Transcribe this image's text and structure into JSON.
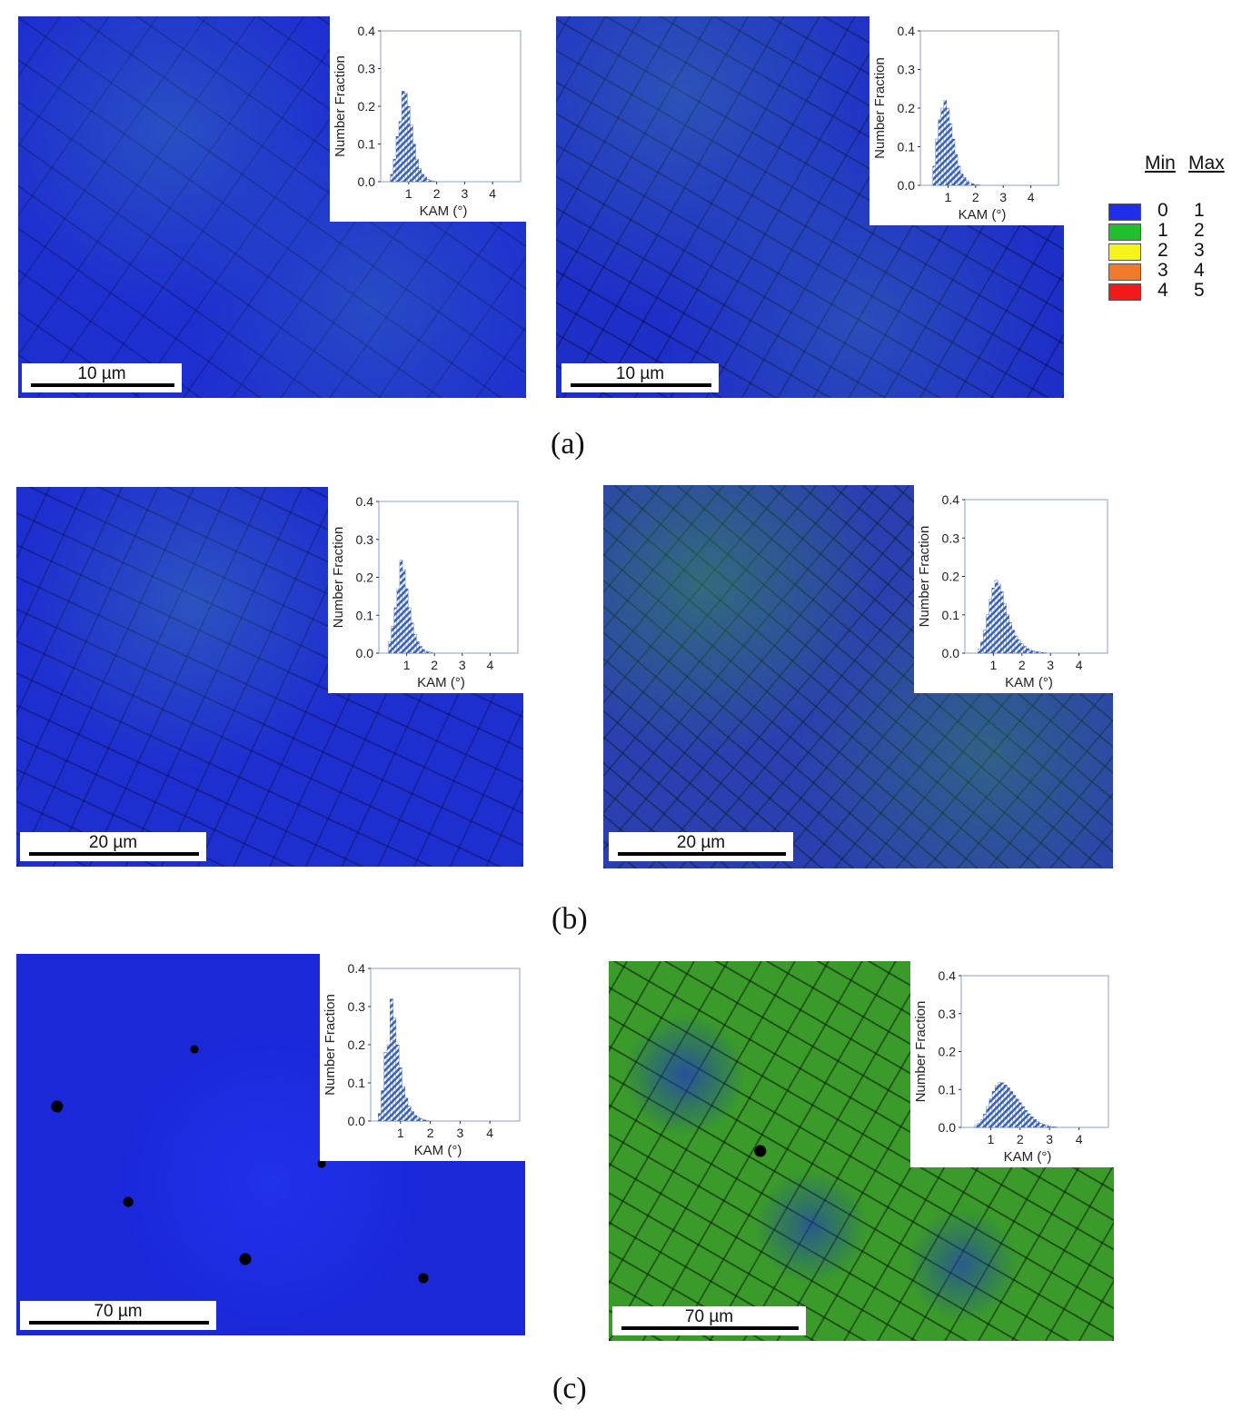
{
  "legend": {
    "min_header": "Min",
    "max_header": "Max",
    "rows": [
      {
        "min": "0",
        "max": "1",
        "color": "#1f2ee8"
      },
      {
        "min": "1",
        "max": "2",
        "color": "#1fbf2e"
      },
      {
        "min": "2",
        "max": "3",
        "color": "#f5f51a"
      },
      {
        "min": "3",
        "max": "4",
        "color": "#f07a2a"
      },
      {
        "min": "4",
        "max": "5",
        "color": "#f01a1a"
      }
    ]
  },
  "panel_labels": [
    "(a)",
    "(b)",
    "(c)"
  ],
  "scale_bars": [
    "10 µm",
    "10 µm",
    "20 µm",
    "20 µm",
    "70 µm",
    "70 µm"
  ],
  "chart_data": [
    {
      "type": "bar",
      "xlabel": "KAM (°)",
      "ylabel": "Number Fraction",
      "xlim": [
        0,
        5
      ],
      "ylim": [
        0,
        0.4
      ],
      "xticks": [
        1,
        2,
        3,
        4
      ],
      "yticks": [
        "0.0",
        "0.1",
        "0.2",
        "0.3",
        "0.4"
      ],
      "bin_width": 0.1,
      "x": [
        0.4,
        0.5,
        0.6,
        0.7,
        0.8,
        0.9,
        1.0,
        1.1,
        1.2,
        1.3,
        1.4,
        1.5,
        1.6,
        1.7,
        1.8,
        1.9
      ],
      "values": [
        0.02,
        0.06,
        0.12,
        0.16,
        0.24,
        0.235,
        0.2,
        0.15,
        0.1,
        0.06,
        0.035,
        0.02,
        0.012,
        0.006,
        0.003,
        0.001
      ]
    },
    {
      "type": "bar",
      "xlabel": "KAM (°)",
      "ylabel": "Number Fraction",
      "xlim": [
        0,
        5
      ],
      "ylim": [
        0,
        0.4
      ],
      "xticks": [
        1,
        2,
        3,
        4
      ],
      "yticks": [
        "0.0",
        "0.1",
        "0.2",
        "0.3",
        "0.4"
      ],
      "bin_width": 0.1,
      "x": [
        0.5,
        0.6,
        0.7,
        0.8,
        0.9,
        1.0,
        1.1,
        1.2,
        1.3,
        1.4,
        1.5,
        1.6,
        1.7,
        1.8,
        1.9,
        2.0,
        2.1
      ],
      "values": [
        0.05,
        0.12,
        0.17,
        0.2,
        0.22,
        0.2,
        0.16,
        0.12,
        0.08,
        0.05,
        0.03,
        0.02,
        0.012,
        0.007,
        0.004,
        0.002,
        0.001
      ]
    },
    {
      "type": "bar",
      "xlabel": "KAM (°)",
      "ylabel": "Number Fraction",
      "xlim": [
        0,
        5
      ],
      "ylim": [
        0,
        0.4
      ],
      "xticks": [
        1,
        2,
        3,
        4
      ],
      "yticks": [
        "0.0",
        "0.1",
        "0.2",
        "0.3",
        "0.4"
      ],
      "bin_width": 0.1,
      "x": [
        0.4,
        0.5,
        0.6,
        0.7,
        0.8,
        0.9,
        1.0,
        1.1,
        1.2,
        1.3,
        1.4,
        1.5,
        1.6,
        1.7,
        1.8,
        1.9
      ],
      "values": [
        0.03,
        0.07,
        0.12,
        0.17,
        0.245,
        0.22,
        0.17,
        0.12,
        0.08,
        0.05,
        0.03,
        0.018,
        0.01,
        0.005,
        0.003,
        0.001
      ]
    },
    {
      "type": "bar",
      "xlabel": "KAM (°)",
      "ylabel": "Number Fraction",
      "xlim": [
        0,
        5
      ],
      "ylim": [
        0,
        0.4
      ],
      "xticks": [
        1,
        2,
        3,
        4
      ],
      "yticks": [
        "0.0",
        "0.1",
        "0.2",
        "0.3",
        "0.4"
      ],
      "bin_width": 0.1,
      "x": [
        0.5,
        0.6,
        0.7,
        0.8,
        0.9,
        1.0,
        1.1,
        1.2,
        1.3,
        1.4,
        1.5,
        1.6,
        1.7,
        1.8,
        1.9,
        2.0,
        2.1,
        2.2,
        2.3,
        2.4,
        2.5,
        2.6,
        2.7,
        2.8
      ],
      "values": [
        0.01,
        0.03,
        0.06,
        0.1,
        0.14,
        0.17,
        0.19,
        0.18,
        0.16,
        0.13,
        0.1,
        0.08,
        0.06,
        0.045,
        0.035,
        0.025,
        0.018,
        0.012,
        0.008,
        0.006,
        0.004,
        0.003,
        0.002,
        0.001
      ]
    },
    {
      "type": "bar",
      "xlabel": "KAM (°)",
      "ylabel": "Number Fraction",
      "xlim": [
        0,
        5
      ],
      "ylim": [
        0,
        0.4
      ],
      "xticks": [
        1,
        2,
        3,
        4
      ],
      "yticks": [
        "0.0",
        "0.1",
        "0.2",
        "0.3",
        "0.4"
      ],
      "bin_width": 0.1,
      "x": [
        0.3,
        0.4,
        0.5,
        0.6,
        0.7,
        0.8,
        0.9,
        1.0,
        1.1,
        1.2,
        1.3,
        1.4,
        1.5,
        1.6,
        1.7,
        1.8,
        1.9
      ],
      "values": [
        0.02,
        0.08,
        0.18,
        0.2,
        0.32,
        0.27,
        0.2,
        0.14,
        0.09,
        0.06,
        0.04,
        0.025,
        0.015,
        0.01,
        0.006,
        0.003,
        0.001
      ]
    },
    {
      "type": "bar",
      "xlabel": "KAM (°)",
      "ylabel": "Number Fraction",
      "xlim": [
        0,
        5
      ],
      "ylim": [
        0,
        0.4
      ],
      "xticks": [
        1,
        2,
        3,
        4
      ],
      "yticks": [
        "0.0",
        "0.1",
        "0.2",
        "0.3",
        "0.4"
      ],
      "bin_width": 0.1,
      "x": [
        0.5,
        0.6,
        0.7,
        0.8,
        0.9,
        1.0,
        1.1,
        1.2,
        1.3,
        1.4,
        1.5,
        1.6,
        1.7,
        1.8,
        1.9,
        2.0,
        2.1,
        2.2,
        2.3,
        2.4,
        2.5,
        2.6,
        2.7,
        2.8,
        2.9,
        3.0,
        3.1,
        3.2
      ],
      "values": [
        0.005,
        0.01,
        0.02,
        0.035,
        0.055,
        0.075,
        0.095,
        0.11,
        0.118,
        0.118,
        0.112,
        0.105,
        0.095,
        0.085,
        0.075,
        0.065,
        0.055,
        0.045,
        0.036,
        0.028,
        0.021,
        0.015,
        0.011,
        0.008,
        0.005,
        0.003,
        0.002,
        0.001
      ]
    }
  ]
}
